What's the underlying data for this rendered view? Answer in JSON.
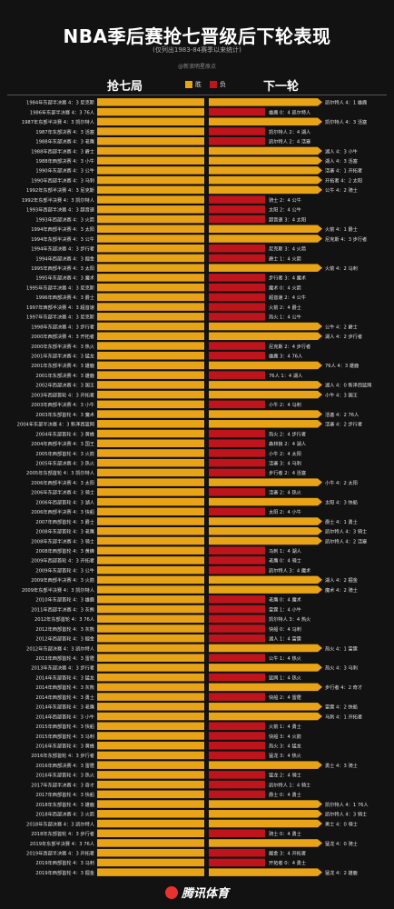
{
  "header": {
    "title": "NBA季后赛抢七晋级后下轮表现",
    "subtitle": "(仅列出1983-84赛季以来统计)",
    "source": "@新浪明星原点",
    "left_col": "抢七局",
    "right_col": "下一轮",
    "legend_win": "胜",
    "legend_loss": "负"
  },
  "colors": {
    "win": "#e8a317",
    "loss": "#c0141c",
    "background": "#121212"
  },
  "footer": {
    "logo": "腾讯体育",
    "logo_icon": "tencent-sports-logo-icon"
  },
  "chart_data": {
    "type": "table",
    "title": "NBA季后赛抢七晋级后下轮表现",
    "rows": [
      {
        "g7": "1984年东部半决赛 4：3 尼克斯",
        "next": "凯尔特人 4：1 雄鹿",
        "win": true
      },
      {
        "g7": "1986年东部半决赛 4：3 76人",
        "next": "雄鹿 0：4 凯尔特人",
        "win": false
      },
      {
        "g7": "1987年东部半决赛 4：3 凯尔特人",
        "next": "凯尔特人 4：3 活塞",
        "win": true
      },
      {
        "g7": "1987年东部决赛 4：3 活塞",
        "next": "凯尔特人 2：4 湖人",
        "win": false
      },
      {
        "g7": "1988年东部决赛 4：3 老鹰",
        "next": "凯尔特人 2：4 活塞",
        "win": false
      },
      {
        "g7": "1988年西部半决赛 4：3 爵士",
        "next": "湖人 4：3 小牛",
        "win": true
      },
      {
        "g7": "1988年西部决赛 4：3 小牛",
        "next": "湖人 4：3 活塞",
        "win": true
      },
      {
        "g7": "1990年东部决赛 4：3 公牛",
        "next": "活塞 4：1 开拓者",
        "win": true
      },
      {
        "g7": "1990年西部半决赛 4：3 马刺",
        "next": "开拓者 4：2 太阳",
        "win": true
      },
      {
        "g7": "1992年东部半决赛 4：3 尼克斯",
        "next": "公牛 4：2 骑士",
        "win": true
      },
      {
        "g7": "1992年东部半决赛 4：3 凯尔特人",
        "next": "骑士 2：4 公牛",
        "win": false
      },
      {
        "g7": "1993年西部半决赛 4：3 超音速",
        "next": "太阳 2：4 公牛",
        "win": false
      },
      {
        "g7": "1993年西部决赛 4：3 火箭",
        "next": "超音速 3：4 太阳",
        "win": false
      },
      {
        "g7": "1994年西部半决赛 4：3 太阳",
        "next": "火箭 4：1 爵士",
        "win": true
      },
      {
        "g7": "1994年东部半决赛 4：3 公牛",
        "next": "尼克斯 4：3 步行者",
        "win": true
      },
      {
        "g7": "1994年东部决赛 4：3 步行者",
        "next": "尼克斯 3：4 火箭",
        "win": false
      },
      {
        "g7": "1994年西部决赛 4：3 掘金",
        "next": "爵士 1：4 火箭",
        "win": false
      },
      {
        "g7": "1995年西部半决赛 4：3 太阳",
        "next": "火箭 4：2 马刺",
        "win": true
      },
      {
        "g7": "1995年东部决赛 4：3 魔术",
        "next": "步行者 3：4 魔术",
        "win": false
      },
      {
        "g7": "1995年东部半决赛 4：3 尼克斯",
        "next": "魔术 0：4 火箭",
        "win": false
      },
      {
        "g7": "1996年西部决赛 4：3 爵士",
        "next": "超音速 2：4 公牛",
        "win": false
      },
      {
        "g7": "1997年西部半决赛 4：3 超音速",
        "next": "火箭 2：4 爵士",
        "win": false
      },
      {
        "g7": "1997年东部半决赛 4：3 尼克斯",
        "next": "热火 1：4 公牛",
        "win": false
      },
      {
        "g7": "1998年东部决赛 4：3 步行者",
        "next": "公牛 4：2 爵士",
        "win": true
      },
      {
        "g7": "2000年西部决赛 4：3 开拓者",
        "next": "湖人 4：2 步行者",
        "win": true
      },
      {
        "g7": "2000年东部半决赛 4：3 热火",
        "next": "尼克斯 2：4 步行者",
        "win": false
      },
      {
        "g7": "2001年东部半决赛 4：3 猛龙",
        "next": "雄鹿 3：4 76人",
        "win": false
      },
      {
        "g7": "2001年东部半决赛 4：3 雄鹿",
        "next": "76人 4：3 雄鹿",
        "win": true
      },
      {
        "g7": "2001年东部决赛 4：3 雄鹿",
        "next": "76人 1：4 湖人",
        "win": false
      },
      {
        "g7": "2002年西部决赛 4：3 国王",
        "next": "湖人 4：0 新泽西篮网",
        "win": true
      },
      {
        "g7": "2003年西部首轮 4：3 开拓者",
        "next": "小牛 4：3 国王",
        "win": true
      },
      {
        "g7": "2003年西部半决赛 4：3 小牛",
        "next": "小牛 2：4 马刺",
        "win": false
      },
      {
        "g7": "2003年东部首轮 4：3 魔术",
        "next": "活塞 4：2 76人",
        "win": true
      },
      {
        "g7": "2004年东部半决赛 4：3 新泽西篮网",
        "next": "活塞 4：2 步行者",
        "win": true
      },
      {
        "g7": "2004年东部首轮 4：3 黄蜂",
        "next": "热火 2：4 步行者",
        "win": false
      },
      {
        "g7": "2004年西部半决赛 4：3 国王",
        "next": "森林狼 2：4 湖人",
        "win": false
      },
      {
        "g7": "2005年西部首轮 4：3 火箭",
        "next": "小牛 2：4 太阳",
        "win": false
      },
      {
        "g7": "2005年东部决赛 4：3 热火",
        "next": "活塞 3：4 马刺",
        "win": false
      },
      {
        "g7": "2005年东部首轮 4：3 凯尔特人",
        "next": "步行者 2：4 活塞",
        "win": false
      },
      {
        "g7": "2006年西部半决赛 4：3 太阳",
        "next": "小牛 4：2 太阳",
        "win": true
      },
      {
        "g7": "2006年东部半决赛 4：3 骑士",
        "next": "活塞 2：4 热火",
        "win": false
      },
      {
        "g7": "2006年西部首轮 4：3 湖人",
        "next": "太阳 4：3 快船",
        "win": true
      },
      {
        "g7": "2006年西部半决赛 4：3 快船",
        "next": "太阳 2：4 小牛",
        "win": false
      },
      {
        "g7": "2007年西部首轮 4：3 爵士",
        "next": "爵士 4：1 勇士",
        "win": true
      },
      {
        "g7": "2008年东部首轮 4：3 老鹰",
        "next": "凯尔特人 4：3 骑士",
        "win": true
      },
      {
        "g7": "2008年东部半决赛 4：3 骑士",
        "next": "凯尔特人 4：2 活塞",
        "win": true
      },
      {
        "g7": "2008年西部首轮 4：3 黄蜂",
        "next": "马刺 1：4 湖人",
        "win": false
      },
      {
        "g7": "2009年西部首轮 4：3 开拓者",
        "next": "老鹰 0：4 骑士",
        "win": false
      },
      {
        "g7": "2009年东部首轮 4：3 公牛",
        "next": "凯尔特人 3：4 魔术",
        "win": false
      },
      {
        "g7": "2009年西部半决赛 4：3 火箭",
        "next": "湖人 4：2 掘金",
        "win": true
      },
      {
        "g7": "2009年东部半决赛 4：3 凯尔特人",
        "next": "魔术 4：2 骑士",
        "win": true
      },
      {
        "g7": "2010年东部首轮 4：3 雄鹿",
        "next": "老鹰 0：4 魔术",
        "win": false
      },
      {
        "g7": "2011年西部半决赛 4：3 灰熊",
        "next": "雷霆 1：4 小牛",
        "win": false
      },
      {
        "g7": "2012年东部首轮 4：3 76人",
        "next": "凯尔特人 3：4 热火",
        "win": false
      },
      {
        "g7": "2012年西部首轮 4：3 灰熊",
        "next": "快船 0：4 马刺",
        "win": false
      },
      {
        "g7": "2012年西部首轮 4：3 掘金",
        "next": "湖人 1：4 雷霆",
        "win": false
      },
      {
        "g7": "2012年东部决赛 4：3 凯尔特人",
        "next": "热火 4：1 雷霆",
        "win": true
      },
      {
        "g7": "2013年西部首轮 4：3 雷霆",
        "next": "公牛 1：4 热火",
        "win": false
      },
      {
        "g7": "2013年东部决赛 4：3 步行者",
        "next": "热火 4：3 马刺",
        "win": true
      },
      {
        "g7": "2014年东部首轮 4：3 猛龙",
        "next": "篮网 1：4 热火",
        "win": false
      },
      {
        "g7": "2014年西部首轮 4：3 灰熊",
        "next": "步行者 4：2 奇才",
        "win": true
      },
      {
        "g7": "2014年西部首轮 4：3 勇士",
        "next": "快船 2：4 雷霆",
        "win": false
      },
      {
        "g7": "2014年东部首轮 4：3 老鹰",
        "next": "雷霆 4：2 快船",
        "win": true
      },
      {
        "g7": "2014年西部首轮 4：3 小牛",
        "next": "马刺 4：1 开拓者",
        "win": true
      },
      {
        "g7": "2015年西部首轮 4：3 快船",
        "next": "火箭 1：4 勇士",
        "win": false
      },
      {
        "g7": "2015年西部首轮 4：3 马刺",
        "next": "快船 3：4 火箭",
        "win": false
      },
      {
        "g7": "2016年东部首轮 4：3 黄蜂",
        "next": "热火 3：4 猛龙",
        "win": false
      },
      {
        "g7": "2016年东部首轮 4：3 步行者",
        "next": "猛龙 3：4 热火",
        "win": false
      },
      {
        "g7": "2016年西部决赛 4：3 雷霆",
        "next": "勇士 4：3 骑士",
        "win": true
      },
      {
        "g7": "2016年东部首轮 4：3 热火",
        "next": "猛龙 2：4 骑士",
        "win": false
      },
      {
        "g7": "2017年东部半决赛 4：3 奇才",
        "next": "凯尔特人 1：4 骑士",
        "win": false
      },
      {
        "g7": "2017年西部首轮 4：3 快船",
        "next": "爵士 0：4 勇士",
        "win": false
      },
      {
        "g7": "2018年东部首轮 4：3 雄鹿",
        "next": "凯尔特人 4：1 76人",
        "win": true
      },
      {
        "g7": "2018年西部决赛 4：3 火箭",
        "next": "凯尔特人 4：3 骑士",
        "win": true
      },
      {
        "g7": "2018年东部决赛 4：3 凯尔特人",
        "next": "勇士 4：0 骑士",
        "win": true
      },
      {
        "g7": "2018年东部首轮 4：3 步行者",
        "next": "骑士 0：4 勇士",
        "win": false
      },
      {
        "g7": "2019年东部半决赛 4：3 76人",
        "next": "猛龙 4：0 骑士",
        "win": true
      },
      {
        "g7": "2019年西部半决赛 4：3 开拓者",
        "next": "掘金 3：4 开拓者",
        "win": false
      },
      {
        "g7": "2019年西部首轮 4：3 马刺",
        "next": "开拓者 0：4 勇士",
        "win": false
      },
      {
        "g7": "2019年西部首轮 4：3 掘金",
        "next": "猛龙 4：2 雄鹿",
        "win": true
      }
    ]
  }
}
